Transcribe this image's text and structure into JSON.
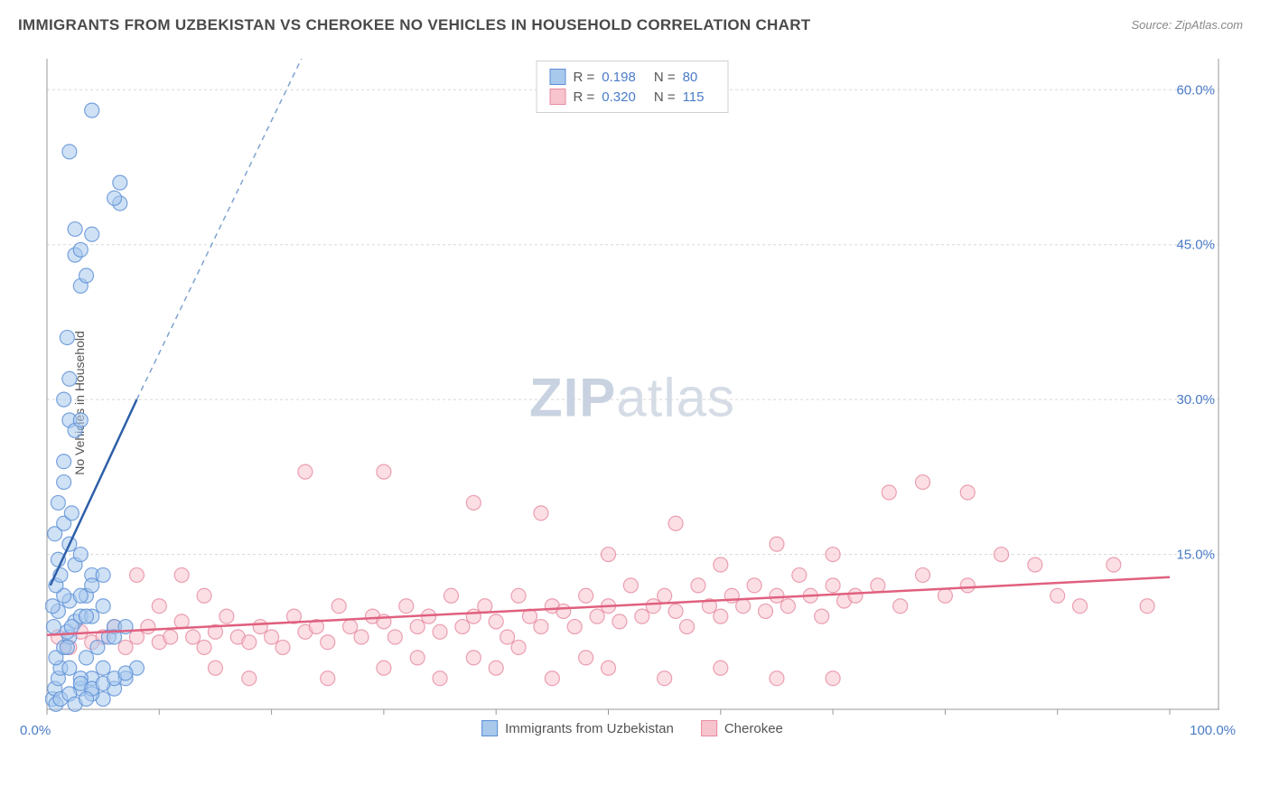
{
  "title": "IMMIGRANTS FROM UZBEKISTAN VS CHEROKEE NO VEHICLES IN HOUSEHOLD CORRELATION CHART",
  "source": "Source: ZipAtlas.com",
  "ylabel": "No Vehicles in Household",
  "watermark_zip": "ZIP",
  "watermark_atlas": "atlas",
  "chart": {
    "type": "scatter",
    "xlim": [
      0,
      100
    ],
    "ylim": [
      0,
      63
    ],
    "x_axis_label_left": "0.0%",
    "x_axis_label_right": "100.0%",
    "y_ticks": [
      15.0,
      30.0,
      45.0,
      60.0
    ],
    "y_tick_labels": [
      "15.0%",
      "30.0%",
      "45.0%",
      "60.0%"
    ],
    "grid_color": "#d8d8d8",
    "axis_color": "#999",
    "background": "#ffffff",
    "axis_label_color": "#4a7bc8",
    "series": [
      {
        "name": "Immigrants from Uzbekistan",
        "marker_fill": "#a8c8ec",
        "marker_stroke": "#5b8fd6",
        "marker_opacity": 0.55,
        "marker_radius": 8,
        "line_color": "#2e5fa8",
        "line_dash_color": "#7fa3d0",
        "R": "0.198",
        "N": "80",
        "trend": {
          "x1": 0.3,
          "y1": 12,
          "x2_solid": 8,
          "y2_solid": 30,
          "x2_dash": 24,
          "y2_dash": 66
        },
        "points": [
          [
            0.5,
            1
          ],
          [
            0.7,
            2
          ],
          [
            1,
            3
          ],
          [
            1.2,
            4
          ],
          [
            0.8,
            5
          ],
          [
            1.5,
            6
          ],
          [
            2,
            7
          ],
          [
            1.8,
            7.5
          ],
          [
            0.6,
            8
          ],
          [
            2.5,
            8.5
          ],
          [
            3,
            9
          ],
          [
            1,
            9.5
          ],
          [
            0.5,
            10
          ],
          [
            2,
            10.5
          ],
          [
            1.5,
            11
          ],
          [
            3.5,
            11
          ],
          [
            0.8,
            12
          ],
          [
            1.2,
            13
          ],
          [
            4,
            13
          ],
          [
            2.5,
            14
          ],
          [
            1,
            14.5
          ],
          [
            3,
            15
          ],
          [
            2,
            16
          ],
          [
            0.7,
            17
          ],
          [
            1.5,
            18
          ],
          [
            2.2,
            19
          ],
          [
            3,
            2
          ],
          [
            4,
            3
          ],
          [
            5,
            4
          ],
          [
            3.5,
            5
          ],
          [
            4.5,
            6
          ],
          [
            5.5,
            7
          ],
          [
            6,
            8
          ],
          [
            4,
            9
          ],
          [
            5,
            10
          ],
          [
            3,
            11
          ],
          [
            4,
            12
          ],
          [
            5,
            13
          ],
          [
            6,
            7
          ],
          [
            7,
            8
          ],
          [
            8,
            4
          ],
          [
            7,
            3
          ],
          [
            6,
            2
          ],
          [
            5,
            1
          ],
          [
            4,
            1.5
          ],
          [
            3,
            3
          ],
          [
            2,
            4
          ],
          [
            1.8,
            6
          ],
          [
            2.2,
            8
          ],
          [
            3.5,
            9
          ],
          [
            1.5,
            24
          ],
          [
            2,
            28
          ],
          [
            2.5,
            27
          ],
          [
            3,
            28
          ],
          [
            1.5,
            30
          ],
          [
            2,
            32
          ],
          [
            1.8,
            36
          ],
          [
            3,
            41
          ],
          [
            3.5,
            42
          ],
          [
            2.5,
            44
          ],
          [
            3,
            44.5
          ],
          [
            4,
            46
          ],
          [
            2.5,
            46.5
          ],
          [
            6.5,
            49
          ],
          [
            6,
            49.5
          ],
          [
            6.5,
            51
          ],
          [
            2,
            54
          ],
          [
            4,
            58
          ],
          [
            1,
            20
          ],
          [
            1.5,
            22
          ],
          [
            0.8,
            0.5
          ],
          [
            1.2,
            1
          ],
          [
            2,
            1.5
          ],
          [
            3,
            2.5
          ],
          [
            4,
            2
          ],
          [
            5,
            2.5
          ],
          [
            6,
            3
          ],
          [
            7,
            3.5
          ],
          [
            2.5,
            0.5
          ],
          [
            3.5,
            1
          ]
        ]
      },
      {
        "name": "Cherokee",
        "marker_fill": "#f7c4ce",
        "marker_stroke": "#e68aa0",
        "marker_opacity": 0.55,
        "marker_radius": 8,
        "line_color": "#e0607f",
        "R": "0.320",
        "N": "115",
        "trend": {
          "x1": 0,
          "y1": 7.2,
          "x2": 100,
          "y2": 12.8
        },
        "points": [
          [
            1,
            7
          ],
          [
            2,
            6
          ],
          [
            3,
            7.5
          ],
          [
            4,
            6.5
          ],
          [
            5,
            7
          ],
          [
            6,
            8
          ],
          [
            7,
            6
          ],
          [
            8,
            7
          ],
          [
            9,
            8
          ],
          [
            10,
            6.5
          ],
          [
            11,
            7
          ],
          [
            12,
            8.5
          ],
          [
            13,
            7
          ],
          [
            14,
            6
          ],
          [
            15,
            7.5
          ],
          [
            16,
            9
          ],
          [
            17,
            7
          ],
          [
            18,
            6.5
          ],
          [
            19,
            8
          ],
          [
            20,
            7
          ],
          [
            21,
            6
          ],
          [
            22,
            9
          ],
          [
            23,
            7.5
          ],
          [
            24,
            8
          ],
          [
            25,
            6.5
          ],
          [
            26,
            10
          ],
          [
            27,
            8
          ],
          [
            28,
            7
          ],
          [
            29,
            9
          ],
          [
            30,
            8.5
          ],
          [
            31,
            7
          ],
          [
            32,
            10
          ],
          [
            33,
            8
          ],
          [
            34,
            9
          ],
          [
            35,
            7.5
          ],
          [
            36,
            11
          ],
          [
            37,
            8
          ],
          [
            38,
            9
          ],
          [
            39,
            10
          ],
          [
            40,
            8.5
          ],
          [
            41,
            7
          ],
          [
            42,
            11
          ],
          [
            43,
            9
          ],
          [
            44,
            8
          ],
          [
            45,
            10
          ],
          [
            46,
            9.5
          ],
          [
            47,
            8
          ],
          [
            48,
            11
          ],
          [
            49,
            9
          ],
          [
            50,
            10
          ],
          [
            51,
            8.5
          ],
          [
            52,
            12
          ],
          [
            53,
            9
          ],
          [
            54,
            10
          ],
          [
            55,
            11
          ],
          [
            56,
            9.5
          ],
          [
            57,
            8
          ],
          [
            58,
            12
          ],
          [
            59,
            10
          ],
          [
            60,
            9
          ],
          [
            61,
            11
          ],
          [
            62,
            10
          ],
          [
            63,
            12
          ],
          [
            64,
            9.5
          ],
          [
            65,
            11
          ],
          [
            66,
            10
          ],
          [
            67,
            13
          ],
          [
            68,
            11
          ],
          [
            69,
            9
          ],
          [
            70,
            12
          ],
          [
            71,
            10.5
          ],
          [
            72,
            11
          ],
          [
            74,
            12
          ],
          [
            76,
            10
          ],
          [
            78,
            13
          ],
          [
            80,
            11
          ],
          [
            82,
            12
          ],
          [
            85,
            15
          ],
          [
            88,
            14
          ],
          [
            90,
            11
          ],
          [
            92,
            10
          ],
          [
            95,
            14
          ],
          [
            98,
            10
          ],
          [
            23,
            23
          ],
          [
            30,
            23
          ],
          [
            38,
            20
          ],
          [
            44,
            19
          ],
          [
            56,
            18
          ],
          [
            50,
            15
          ],
          [
            60,
            14
          ],
          [
            65,
            16
          ],
          [
            70,
            15
          ],
          [
            75,
            21
          ],
          [
            78,
            22
          ],
          [
            82,
            21
          ],
          [
            18,
            3
          ],
          [
            25,
            3
          ],
          [
            30,
            4
          ],
          [
            35,
            3
          ],
          [
            40,
            4
          ],
          [
            45,
            3
          ],
          [
            50,
            4
          ],
          [
            55,
            3
          ],
          [
            60,
            4
          ],
          [
            12,
            13
          ],
          [
            15,
            4
          ],
          [
            8,
            13
          ],
          [
            10,
            10
          ],
          [
            14,
            11
          ],
          [
            33,
            5
          ],
          [
            38,
            5
          ],
          [
            42,
            6
          ],
          [
            48,
            5
          ],
          [
            70,
            3
          ],
          [
            65,
            3
          ]
        ]
      }
    ],
    "legend_bottom": [
      {
        "label": "Immigrants from Uzbekistan",
        "swatch": "blue"
      },
      {
        "label": "Cherokee",
        "swatch": "pink"
      }
    ]
  }
}
